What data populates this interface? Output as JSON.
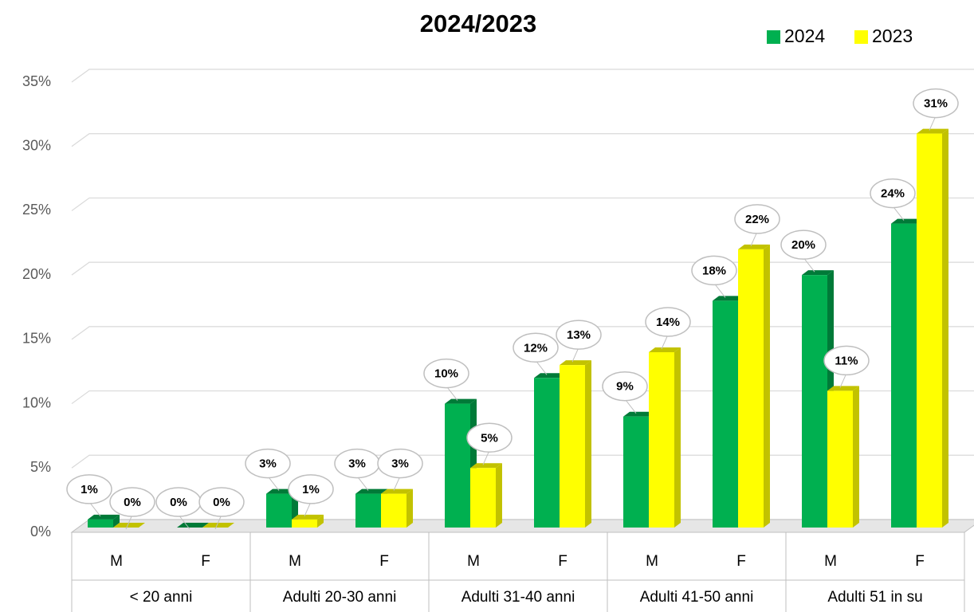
{
  "chart_data": {
    "type": "bar3d",
    "title": "2024/2023",
    "categories": [
      "M",
      "F",
      "M",
      "F",
      "M",
      "F",
      "M",
      "F",
      "M",
      "F"
    ],
    "group_labels": [
      "< 20 anni",
      "Adulti 20-30 anni",
      "Adulti 31-40 anni",
      "Adulti 41-50 anni",
      "Adulti 51 in su"
    ],
    "series": [
      {
        "name": "2024",
        "color": "#00b050",
        "side_color": "#007a38",
        "values": [
          1,
          0,
          3,
          3,
          10,
          12,
          9,
          18,
          20,
          24
        ],
        "value_labels": [
          "1%",
          "0%",
          "3%",
          "3%",
          "10%",
          "12%",
          "9%",
          "18%",
          "20%",
          "24%"
        ]
      },
      {
        "name": "2023",
        "color": "#ffff00",
        "side_color": "#c2c200",
        "values": [
          0,
          0,
          1,
          3,
          5,
          13,
          14,
          22,
          11,
          31
        ],
        "value_labels": [
          "0%",
          "0%",
          "1%",
          "3%",
          "5%",
          "13%",
          "14%",
          "22%",
          "11%",
          "31%"
        ]
      }
    ],
    "ylim": [
      0,
      35
    ],
    "yticks": [
      {
        "value": 0,
        "label": "0%"
      },
      {
        "value": 5,
        "label": "5%"
      },
      {
        "value": 10,
        "label": "10%"
      },
      {
        "value": 15,
        "label": "15%"
      },
      {
        "value": 20,
        "label": "20%"
      },
      {
        "value": 25,
        "label": "25%"
      },
      {
        "value": 30,
        "label": "30%"
      },
      {
        "value": 35,
        "label": "35%"
      }
    ],
    "grid": true,
    "legend": "top-right"
  }
}
